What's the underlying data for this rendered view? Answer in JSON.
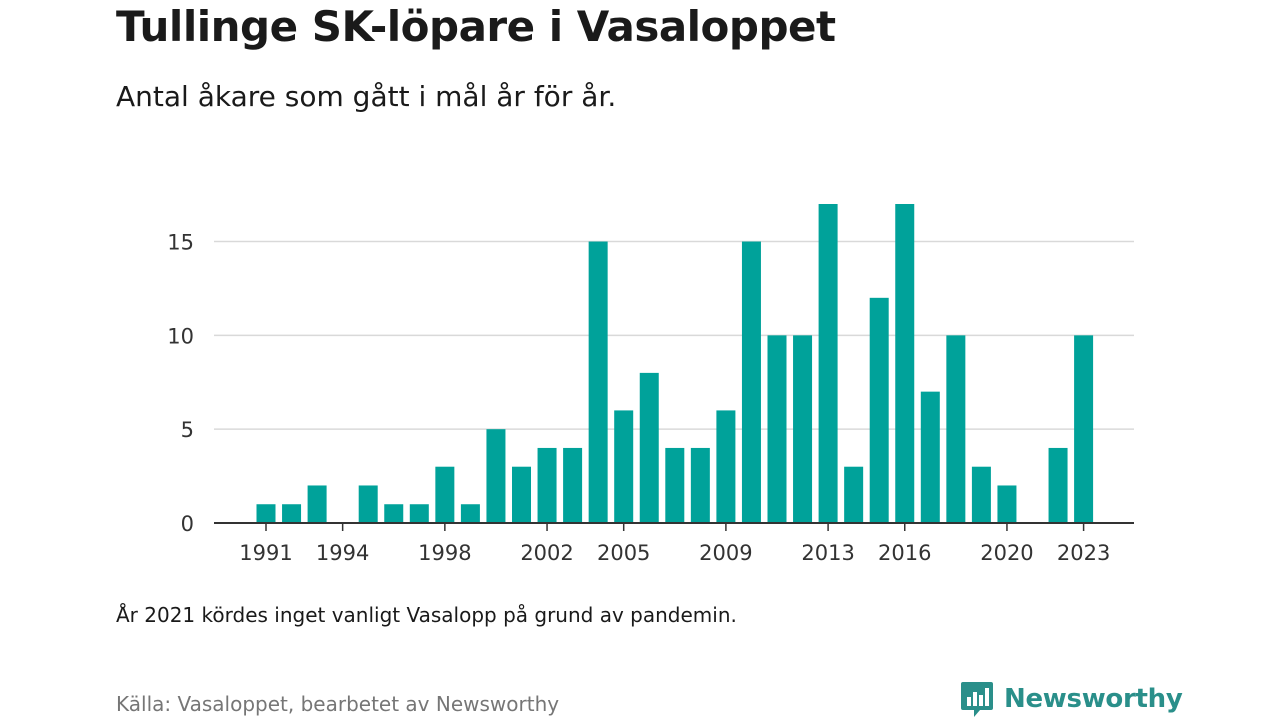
{
  "title": "Tullinge SK-löpare i Vasaloppet",
  "subtitle": "Antal åkare som gått i mål år för år.",
  "note": "År 2021 kördes inget vanligt Vasalopp på grund av pandemin.",
  "source": "Källa: Vasaloppet, bearbetet av Newsworthy",
  "brand": {
    "name": "Newsworthy",
    "color": "#2a8f8a"
  },
  "chart_data": {
    "type": "bar",
    "title": "Tullinge SK-löpare i Vasaloppet",
    "subtitle": "Antal åkare som gått i mål år för år.",
    "xlabel": "",
    "ylabel": "",
    "bar_color": "#00a29a",
    "grid": true,
    "ylim": [
      0,
      17
    ],
    "xlim": [
      1989,
      2025
    ],
    "y_ticks": [
      0,
      5,
      10,
      15
    ],
    "x_ticks": [
      1991,
      1994,
      1998,
      2002,
      2005,
      2009,
      2013,
      2016,
      2020,
      2023
    ],
    "categories": [
      1991,
      1992,
      1993,
      1994,
      1995,
      1996,
      1997,
      1998,
      1999,
      2000,
      2001,
      2002,
      2003,
      2004,
      2005,
      2006,
      2007,
      2008,
      2009,
      2010,
      2011,
      2012,
      2013,
      2014,
      2015,
      2016,
      2017,
      2018,
      2019,
      2020,
      2021,
      2022,
      2023
    ],
    "values": [
      1,
      1,
      2,
      0,
      2,
      1,
      1,
      3,
      1,
      5,
      3,
      4,
      4,
      15,
      6,
      8,
      4,
      4,
      6,
      15,
      10,
      10,
      17,
      3,
      12,
      17,
      7,
      10,
      3,
      2,
      0,
      4,
      10
    ]
  }
}
